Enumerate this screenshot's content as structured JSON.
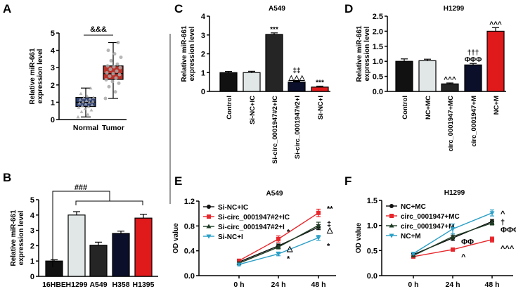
{
  "panels": {
    "A": "A",
    "B": "B",
    "C": "C",
    "D": "D",
    "E": "E",
    "F": "F"
  },
  "ylabel_expr": [
    "Relative miR-661",
    "expression level"
  ],
  "ylabel_od": "OD value",
  "chart_data": [
    {
      "id": "A",
      "type": "box",
      "title": "",
      "ylim": [
        0,
        5
      ],
      "yticks": [
        0,
        1,
        2,
        3,
        4,
        5
      ],
      "categories": [
        "Normal",
        "Tumor"
      ],
      "boxes": [
        {
          "min": 0.15,
          "q1": 0.75,
          "median": 1.0,
          "q3": 1.28,
          "max": 1.82,
          "color": "#2b3f73",
          "points": [
            0.15,
            0.3,
            0.45,
            0.55,
            0.62,
            0.7,
            0.75,
            0.8,
            0.85,
            0.9,
            0.95,
            1.0,
            1.02,
            1.05,
            1.1,
            1.15,
            1.2,
            1.25,
            1.28,
            1.35,
            1.5,
            1.82
          ]
        },
        {
          "min": 1.22,
          "q1": 2.32,
          "median": 2.65,
          "q3": 3.1,
          "max": 4.45,
          "color": "#b8322a",
          "points": [
            1.22,
            1.6,
            1.9,
            2.1,
            2.2,
            2.3,
            2.4,
            2.5,
            2.6,
            2.65,
            2.7,
            2.8,
            2.9,
            3.0,
            3.05,
            3.1,
            3.2,
            3.4,
            3.6,
            3.8,
            4.0,
            4.45
          ]
        }
      ],
      "annotation": "&&&"
    },
    {
      "id": "B",
      "type": "bar",
      "title": "",
      "ylim": [
        0,
        5
      ],
      "yticks": [
        0,
        1,
        2,
        3,
        4,
        5
      ],
      "categories": [
        "16HBE",
        "H1299",
        "A549",
        "H358",
        "H1395"
      ],
      "values": [
        1.0,
        4.0,
        2.03,
        2.8,
        3.8
      ],
      "errors": [
        0.08,
        0.22,
        0.2,
        0.15,
        0.25
      ],
      "colors": [
        "#111111",
        "#e1e7e7",
        "#252525",
        "#0b0f2a",
        "#e0191b"
      ],
      "labels": [
        "",
        "",
        "",
        "",
        ""
      ],
      "annotation": "###"
    },
    {
      "id": "C",
      "type": "bar",
      "title": "A549",
      "ylim": [
        0,
        4
      ],
      "yticks": [
        0,
        1,
        2,
        3,
        4
      ],
      "categories": [
        "Control",
        "Si-NC+IC",
        "Si-circ_0001947#2+IC",
        "Si-circ_0001947#2+I",
        "Si-NC+I"
      ],
      "values": [
        1.0,
        1.0,
        3.03,
        0.5,
        0.23
      ],
      "errors": [
        0.06,
        0.07,
        0.08,
        0.04,
        0.05
      ],
      "colors": [
        "#111111",
        "#e1e7e7",
        "#252525",
        "#0b0f2a",
        "#e0191b"
      ],
      "labels": [
        "",
        "",
        "***",
        "‡‡|△△△",
        "***"
      ]
    },
    {
      "id": "D",
      "type": "bar",
      "title": "H1299",
      "ylim": [
        0,
        2.5
      ],
      "yticks": [
        "0.0",
        "0.5",
        "1.0",
        "1.5",
        "2.0",
        "2.5"
      ],
      "categories": [
        "Control",
        "NC+MC",
        "circ_0001947+MC",
        "circ_0001947+M",
        "NC+M"
      ],
      "values": [
        1.0,
        1.02,
        0.25,
        0.88,
        2.0
      ],
      "errors": [
        0.08,
        0.05,
        0.03,
        0.05,
        0.12
      ],
      "colors": [
        "#111111",
        "#e1e7e7",
        "#252525",
        "#0b0f2a",
        "#e0191b"
      ],
      "labels": [
        "",
        "",
        "^^^",
        "†††|ΦΦΦ",
        "^^^"
      ]
    },
    {
      "id": "E",
      "type": "line",
      "title": "A549",
      "ylim": [
        0,
        1.2
      ],
      "yticks": [
        "0.0",
        "0.4",
        "0.8",
        "1.2"
      ],
      "x": [
        "0 h",
        "24 h",
        "48 h"
      ],
      "series": [
        {
          "name": "Si-NC+IC",
          "values": [
            0.22,
            0.48,
            0.78
          ],
          "errors": [
            0.02,
            0.03,
            0.04
          ],
          "color": "#111111",
          "marker": "circle"
        },
        {
          "name": "Si-circ_0001947#2+IC",
          "values": [
            0.24,
            0.59,
            1.01
          ],
          "errors": [
            0.02,
            0.05,
            0.06
          ],
          "color": "#e8262b",
          "marker": "square"
        },
        {
          "name": "Si-circ_0001947#2+I",
          "values": [
            0.2,
            0.46,
            0.81
          ],
          "errors": [
            0.02,
            0.03,
            0.05
          ],
          "color": "#1f3d25",
          "marker": "triangle-up"
        },
        {
          "name": "Si-NC+I",
          "values": [
            0.18,
            0.35,
            0.61
          ],
          "errors": [
            0.02,
            0.03,
            0.04
          ],
          "color": "#2b9fc6",
          "marker": "triangle-down"
        }
      ],
      "annotations": [
        {
          "x": "24 h",
          "y": 0.71,
          "text": "*"
        },
        {
          "x": "24 h",
          "y": 0.44,
          "text": "△"
        },
        {
          "x": "24 h",
          "y": 0.28,
          "text": "*"
        },
        {
          "x": "48 h",
          "y": 1.08,
          "text": "**"
        },
        {
          "x": "48 h",
          "y": 0.84,
          "text": "‡"
        },
        {
          "x": "48 h",
          "y": 0.74,
          "text": "△"
        },
        {
          "x": "48 h",
          "y": 0.48,
          "text": "*"
        }
      ],
      "legend": "top-left"
    },
    {
      "id": "F",
      "type": "line",
      "title": "H1299",
      "ylim": [
        0,
        1.5
      ],
      "yticks": [
        "0.0",
        "0.5",
        "1.0",
        "1.5"
      ],
      "x": [
        "0 h",
        "24 h",
        "48 h"
      ],
      "series": [
        {
          "name": "NC+MC",
          "values": [
            0.42,
            0.75,
            1.08
          ],
          "errors": [
            0.02,
            0.05,
            0.04
          ],
          "color": "#111111",
          "marker": "circle"
        },
        {
          "name": "circ_0001947+MC",
          "values": [
            0.38,
            0.52,
            0.72
          ],
          "errors": [
            0.02,
            0.03,
            0.05
          ],
          "color": "#e8262b",
          "marker": "square"
        },
        {
          "name": "circ_0001947+M",
          "values": [
            0.4,
            0.78,
            1.05
          ],
          "errors": [
            0.02,
            0.05,
            0.04
          ],
          "color": "#1f3d25",
          "marker": "triangle-up"
        },
        {
          "name": "NC+M",
          "values": [
            0.44,
            0.93,
            1.25
          ],
          "errors": [
            0.02,
            0.1,
            0.06
          ],
          "color": "#2b9fc6",
          "marker": "triangle-down"
        }
      ],
      "annotations": [
        {
          "x": "24 h",
          "y": 0.68,
          "text": "ΦΦ"
        },
        {
          "x": "24 h",
          "y": 0.38,
          "text": "^"
        },
        {
          "x": "48 h",
          "y": 1.24,
          "text": "^"
        },
        {
          "x": "48 h",
          "y": 1.07,
          "text": "†"
        },
        {
          "x": "48 h",
          "y": 0.92,
          "text": "ΦΦΦ"
        },
        {
          "x": "48 h",
          "y": 0.55,
          "text": "^^^"
        }
      ],
      "legend": "top-left"
    }
  ]
}
